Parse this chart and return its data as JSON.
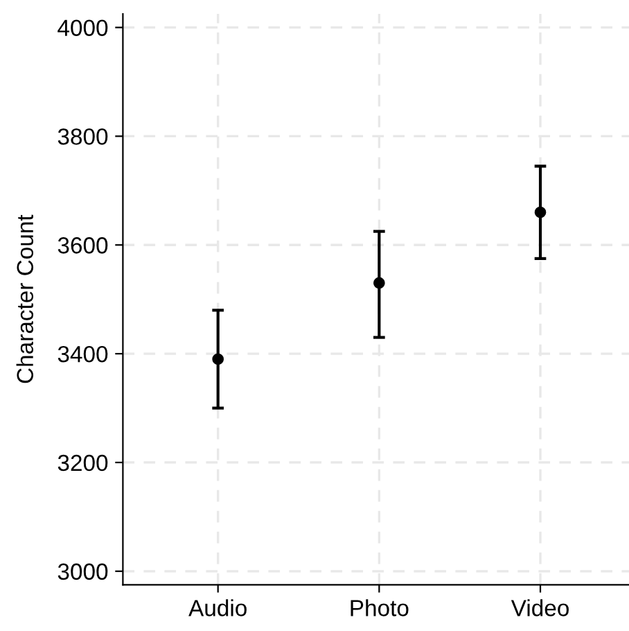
{
  "chart_data": {
    "type": "scatter",
    "ylabel": "Character Count",
    "categories": [
      "Audio",
      "Photo",
      "Video"
    ],
    "series": [
      {
        "color": "#000000",
        "values": [
          3390,
          3530,
          3660
        ],
        "errors": [
          [
            3300,
            3480
          ],
          [
            3430,
            3625
          ],
          [
            3575,
            3745
          ]
        ]
      }
    ],
    "ylim": [
      2975,
      4025
    ],
    "yticks": [
      3000,
      3200,
      3400,
      3600,
      3800,
      4000
    ],
    "grid": true,
    "marker": "circle"
  }
}
